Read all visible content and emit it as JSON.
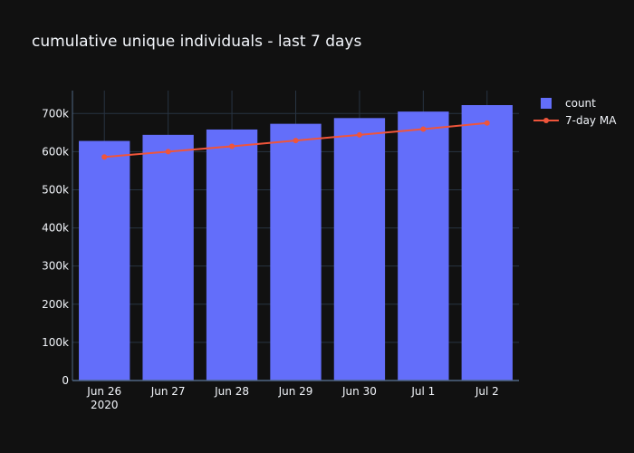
{
  "chart_data": {
    "type": "bar",
    "title": "cumulative unique individuals - last 7 days",
    "categories": [
      "Jun 26",
      "Jun 27",
      "Jun 28",
      "Jun 29",
      "Jun 30",
      "Jul 1",
      "Jul 2"
    ],
    "category_year_label": "2020",
    "xlabel": "",
    "ylabel": "",
    "ylim": [
      0,
      760000
    ],
    "yticks": [
      0,
      100000,
      200000,
      300000,
      400000,
      500000,
      600000,
      700000
    ],
    "ytick_labels": [
      "0",
      "100k",
      "200k",
      "300k",
      "400k",
      "500k",
      "600k",
      "700k"
    ],
    "grid": true,
    "legend_position": "top-right",
    "series": [
      {
        "name": "count",
        "type": "bar",
        "color": "#636efa",
        "values": [
          628000,
          644000,
          658000,
          673000,
          688000,
          705000,
          722000
        ]
      },
      {
        "name": "7-day MA",
        "type": "line",
        "color": "#ef553b",
        "values": [
          586000,
          600000,
          614000,
          629000,
          644000,
          659000,
          675000
        ]
      }
    ]
  },
  "colors": {
    "background": "#111111",
    "grid": "#283442",
    "text": "#f2f5fa"
  }
}
